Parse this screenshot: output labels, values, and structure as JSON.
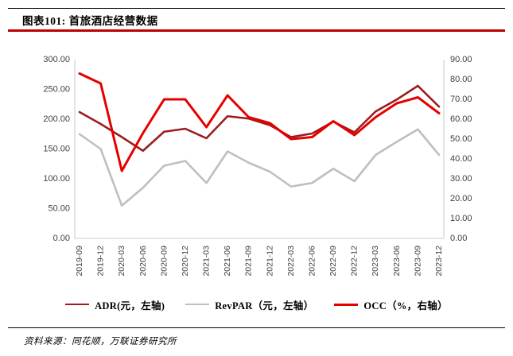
{
  "header": {
    "title": "图表101: 首旅酒店经营数据"
  },
  "footer": {
    "source": "资料来源：同花顺，万联证券研究所"
  },
  "colors": {
    "adr_line": "#9e1c1c",
    "revpar_line": "#bfbfbf",
    "occ_line": "#e60000",
    "header_rule": "#c00000",
    "axis_line": "#c9c9c9",
    "tick_text": "#404040"
  },
  "chart_data": {
    "type": "line",
    "title": "首旅酒店经营数据",
    "categories": [
      "2019-09",
      "2019-12",
      "2020-03",
      "2020-06",
      "2020-09",
      "2020-12",
      "2021-03",
      "2021-06",
      "2021-09",
      "2021-12",
      "2022-03",
      "2022-06",
      "2022-09",
      "2022-12",
      "2023-03",
      "2023-06",
      "2023-09",
      "2023-12"
    ],
    "series": [
      {
        "name": "ADR(元，左轴)",
        "axis": "left",
        "color": "#9e1c1c",
        "width": 2.6,
        "values": [
          212,
          192,
          170,
          147,
          179,
          184,
          168,
          205,
          201,
          190,
          170,
          176,
          196,
          178,
          213,
          233,
          256,
          221
        ]
      },
      {
        "name": "RevPAR（元，左轴）",
        "axis": "left",
        "color": "#bfbfbf",
        "width": 2.6,
        "values": [
          175,
          150,
          55,
          85,
          122,
          130,
          93,
          146,
          127,
          112,
          87,
          93,
          117,
          96,
          140,
          162,
          183,
          140
        ]
      },
      {
        "name": "OCC（%，右轴）",
        "axis": "right",
        "color": "#e60000",
        "width": 3,
        "values": [
          83,
          78,
          34,
          53,
          70,
          70,
          56,
          72,
          61,
          58,
          50,
          51,
          59,
          52,
          61,
          68,
          71,
          63
        ]
      }
    ],
    "left_axis": {
      "min": 0,
      "max": 300,
      "step": 50,
      "label_format": "0.00"
    },
    "right_axis": {
      "min": 0,
      "max": 90,
      "step": 10,
      "label_format": "0.00"
    },
    "grid": false,
    "legend_position": "bottom"
  }
}
